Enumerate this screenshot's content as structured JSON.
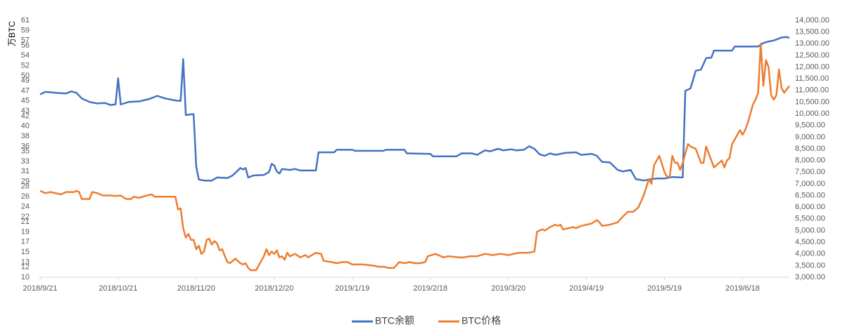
{
  "chart_data": {
    "type": "line",
    "y_label": "万BTC",
    "xlim": [
      "2018/9/21",
      "2019/7/6"
    ],
    "xticks": [
      "2018/9/21",
      "2018/10/21",
      "2018/11/20",
      "2018/12/20",
      "2019/1/19",
      "2019/2/18",
      "2019/3/20",
      "2019/4/19",
      "2019/5/19",
      "2019/6/18"
    ],
    "ylim": [
      10,
      61
    ],
    "yticks": [
      10,
      12,
      13,
      15,
      17,
      19,
      21,
      22,
      24,
      26,
      28,
      29,
      31,
      33,
      35,
      36,
      38,
      40,
      42,
      43,
      45,
      47,
      49,
      50,
      52,
      54,
      56,
      57,
      59,
      61
    ],
    "y2lim": [
      3000,
      14000
    ],
    "y2ticks": [
      {
        "value": 3000,
        "label": "3,000.00"
      },
      {
        "value": 3500,
        "label": "3,500.00"
      },
      {
        "value": 4000,
        "label": "4,000.00"
      },
      {
        "value": 4500,
        "label": "4,500.00"
      },
      {
        "value": 5000,
        "label": "5,000.00"
      },
      {
        "value": 5500,
        "label": "5,500.00"
      },
      {
        "value": 6000,
        "label": "6,000.00"
      },
      {
        "value": 6500,
        "label": "6,500.00"
      },
      {
        "value": 7000,
        "label": "7,000.00"
      },
      {
        "value": 7500,
        "label": "7,500.00"
      },
      {
        "value": 8000,
        "label": "8,000.00"
      },
      {
        "value": 8500,
        "label": "8,500.00"
      },
      {
        "value": 9000,
        "label": "9,000.00"
      },
      {
        "value": 9500,
        "label": "9,500.00"
      },
      {
        "value": 10000,
        "label": "10,000.00"
      },
      {
        "value": 10500,
        "label": "10,500.00"
      },
      {
        "value": 11000,
        "label": "11,000.00"
      },
      {
        "value": 11500,
        "label": "11,500.00"
      },
      {
        "value": 12000,
        "label": "12,000.00"
      },
      {
        "value": 12500,
        "label": "12,500.00"
      },
      {
        "value": 13000,
        "label": "13,000.00"
      },
      {
        "value": 13500,
        "label": "13,500.00"
      },
      {
        "value": 14000,
        "label": "14,000.00"
      }
    ],
    "grid": false,
    "legend": "bottom",
    "series": [
      {
        "name": "BTC余额",
        "color": "#4472c4",
        "axis": "y",
        "x": [
          "2018/9/21",
          "2018/9/23",
          "2018/9/27",
          "2018/10/1",
          "2018/10/3",
          "2018/10/5",
          "2018/10/7",
          "2018/10/10",
          "2018/10/13",
          "2018/10/16",
          "2018/10/18",
          "2018/10/20",
          "2018/10/21",
          "2018/10/22",
          "2018/10/25",
          "2018/10/29",
          "2018/11/2",
          "2018/11/5",
          "2018/11/8",
          "2018/11/12",
          "2018/11/14",
          "2018/11/15",
          "2018/11/16",
          "2018/11/19",
          "2018/11/20",
          "2018/11/21",
          "2018/11/23",
          "2018/11/26",
          "2018/11/28",
          "2018/12/2",
          "2018/12/4",
          "2018/12/7",
          "2018/12/8",
          "2018/12/9",
          "2018/12/10",
          "2018/12/12",
          "2018/12/16",
          "2018/12/18",
          "2018/12/19",
          "2018/12/20",
          "2018/12/21",
          "2018/12/22",
          "2018/12/23",
          "2018/12/26",
          "2018/12/28",
          "2018/12/30",
          "2019/1/5",
          "2019/1/6",
          "2019/1/12",
          "2019/1/13",
          "2019/1/19",
          "2019/1/20",
          "2019/1/31",
          "2019/2/1",
          "2019/2/8",
          "2019/2/9",
          "2019/2/18",
          "2019/2/19",
          "2019/2/28",
          "2019/3/2",
          "2019/3/6",
          "2019/3/8",
          "2019/3/11",
          "2019/3/13",
          "2019/3/16",
          "2019/3/18",
          "2019/3/21",
          "2019/3/23",
          "2019/3/26",
          "2019/3/28",
          "2019/3/30",
          "2019/4/1",
          "2019/4/3",
          "2019/4/5",
          "2019/4/7",
          "2019/4/11",
          "2019/4/15",
          "2019/4/17",
          "2019/4/21",
          "2019/4/23",
          "2019/4/25",
          "2019/4/28",
          "2019/5/1",
          "2019/5/3",
          "2019/5/6",
          "2019/5/8",
          "2019/5/11",
          "2019/5/14",
          "2019/5/16",
          "2019/5/19",
          "2019/5/22",
          "2019/5/26",
          "2019/5/27",
          "2019/5/29",
          "2019/5/31",
          "2019/6/2",
          "2019/6/4",
          "2019/6/6",
          "2019/6/7",
          "2019/6/14",
          "2019/6/15",
          "2019/6/24",
          "2019/6/26",
          "2019/6/28",
          "2019/6/30",
          "2019/7/3",
          "2019/7/5",
          "2019/7/6"
        ],
        "values": [
          46.3,
          46.8,
          46.6,
          46.5,
          46.9,
          46.6,
          45.5,
          44.8,
          44.5,
          44.6,
          44.2,
          44.3,
          49.5,
          44.3,
          44.8,
          44.9,
          45.4,
          46,
          45.5,
          45.1,
          45,
          53.3,
          42.2,
          42.4,
          32,
          29.4,
          29.2,
          29.2,
          29.8,
          29.7,
          30.2,
          31.7,
          31.4,
          31.7,
          29.8,
          30.2,
          30.3,
          30.9,
          32.5,
          32.2,
          31,
          30.6,
          31.5,
          31.3,
          31.5,
          31.2,
          31.2,
          34.8,
          34.8,
          35.3,
          35.3,
          35.1,
          35.1,
          35.3,
          35.3,
          34.6,
          34.5,
          34,
          34,
          34.6,
          34.6,
          34.3,
          35.2,
          35,
          35.5,
          35.2,
          35.4,
          35.2,
          35.3,
          36,
          35.5,
          34.4,
          34.1,
          34.6,
          34.3,
          34.7,
          34.8,
          34.3,
          34.5,
          34.1,
          32.9,
          32.8,
          31.3,
          31,
          31.3,
          29.5,
          29.2,
          29.5,
          29.6,
          29.6,
          29.9,
          29.8,
          47,
          47.5,
          51,
          51.2,
          53.5,
          53.6,
          55,
          55,
          55.8,
          55.8,
          56.5,
          56.8,
          57,
          57.6,
          57.7,
          57.5
        ]
      },
      {
        "name": "BTC价格",
        "color": "#ed7d31",
        "axis": "y2",
        "x": [
          "2018/9/21",
          "2018/9/23",
          "2018/9/25",
          "2018/9/29",
          "2018/10/1",
          "2018/10/4",
          "2018/10/5",
          "2018/10/6",
          "2018/10/7",
          "2018/10/10",
          "2018/10/11",
          "2018/10/13",
          "2018/10/15",
          "2018/10/18",
          "2018/10/20",
          "2018/10/22",
          "2018/10/24",
          "2018/10/26",
          "2018/10/27",
          "2018/10/29",
          "2018/11/1",
          "2018/11/3",
          "2018/11/4",
          "2018/11/12",
          "2018/11/13",
          "2018/11/14",
          "2018/11/15",
          "2018/11/16",
          "2018/11/17",
          "2018/11/18",
          "2018/11/19",
          "2018/11/20",
          "2018/11/21",
          "2018/11/22",
          "2018/11/23",
          "2018/11/24",
          "2018/11/25",
          "2018/11/26",
          "2018/11/27",
          "2018/11/28",
          "2018/11/29",
          "2018/11/30",
          "2018/12/1",
          "2018/12/2",
          "2018/12/3",
          "2018/12/5",
          "2018/12/7",
          "2018/12/8",
          "2018/12/9",
          "2018/12/10",
          "2018/12/11",
          "2018/12/13",
          "2018/12/15",
          "2018/12/16",
          "2018/12/17",
          "2018/12/18",
          "2018/12/19",
          "2018/12/20",
          "2018/12/21",
          "2018/12/22",
          "2018/12/23",
          "2018/12/24",
          "2018/12/25",
          "2018/12/26",
          "2018/12/28",
          "2018/12/30",
          "2019/1/1",
          "2019/1/2",
          "2019/1/5",
          "2019/1/7",
          "2019/1/8",
          "2019/1/11",
          "2019/1/13",
          "2019/1/15",
          "2019/1/17",
          "2019/1/19",
          "2019/1/23",
          "2019/1/27",
          "2019/1/29",
          "2019/1/31",
          "2019/2/2",
          "2019/2/4",
          "2019/2/6",
          "2019/2/8",
          "2019/2/10",
          "2019/2/12",
          "2019/2/14",
          "2019/2/16",
          "2019/2/17",
          "2019/2/20",
          "2019/2/21",
          "2019/2/23",
          "2019/2/25",
          "2019/3/1",
          "2019/3/3",
          "2019/3/5",
          "2019/3/8",
          "2019/3/11",
          "2019/3/14",
          "2019/3/17",
          "2019/3/20",
          "2019/3/24",
          "2019/3/28",
          "2019/3/30",
          "2019/3/31",
          "2019/4/2",
          "2019/4/3",
          "2019/4/5",
          "2019/4/7",
          "2019/4/8",
          "2019/4/9",
          "2019/4/10",
          "2019/4/12",
          "2019/4/14",
          "2019/4/15",
          "2019/4/17",
          "2019/4/21",
          "2019/4/23",
          "2019/4/24",
          "2019/4/25",
          "2019/4/28",
          "2019/5/1",
          "2019/5/3",
          "2019/5/5",
          "2019/5/7",
          "2019/5/9",
          "2019/5/11",
          "2019/5/13",
          "2019/5/14",
          "2019/5/15",
          "2019/5/17",
          "2019/5/19",
          "2019/5/20",
          "2019/5/21",
          "2019/5/22",
          "2019/5/23",
          "2019/5/24",
          "2019/5/25",
          "2019/5/26",
          "2019/5/28",
          "2019/5/29",
          "2019/5/31",
          "2019/6/1",
          "2019/6/2",
          "2019/6/3",
          "2019/6/4",
          "2019/6/6",
          "2019/6/7",
          "2019/6/8",
          "2019/6/9",
          "2019/6/10",
          "2019/6/11",
          "2019/6/12",
          "2019/6/13",
          "2019/6/14",
          "2019/6/15",
          "2019/6/16",
          "2019/6/17",
          "2019/6/18",
          "2019/6/19",
          "2019/6/20",
          "2019/6/22",
          "2019/6/23",
          "2019/6/24",
          "2019/6/25",
          "2019/6/26",
          "2019/6/27",
          "2019/6/28",
          "2019/6/29",
          "2019/6/30",
          "2019/7/1",
          "2019/7/2",
          "2019/7/3",
          "2019/7/4",
          "2019/7/6"
        ],
        "values": [
          6700,
          6600,
          6650,
          6550,
          6650,
          6650,
          6700,
          6650,
          6350,
          6350,
          6650,
          6600,
          6500,
          6500,
          6480,
          6500,
          6350,
          6350,
          6450,
          6400,
          6500,
          6550,
          6450,
          6450,
          5900,
          5950,
          5100,
          4700,
          4850,
          4600,
          4600,
          4200,
          4350,
          4000,
          4100,
          4600,
          4650,
          4400,
          4550,
          4450,
          4150,
          4200,
          3900,
          3650,
          3600,
          3800,
          3600,
          3550,
          3600,
          3400,
          3300,
          3300,
          3700,
          3900,
          4200,
          3950,
          4100,
          4000,
          4150,
          3850,
          3900,
          3750,
          4050,
          3900,
          4000,
          3850,
          3950,
          3850,
          4050,
          4000,
          3700,
          3650,
          3600,
          3650,
          3650,
          3550,
          3550,
          3500,
          3450,
          3450,
          3400,
          3400,
          3650,
          3600,
          3650,
          3600,
          3600,
          3650,
          3900,
          4000,
          3950,
          3850,
          3900,
          3850,
          3850,
          3900,
          3900,
          4000,
          3950,
          4000,
          3950,
          4050,
          4050,
          4100,
          4950,
          5050,
          5000,
          5150,
          5250,
          5200,
          5250,
          5050,
          5100,
          5150,
          5100,
          5200,
          5300,
          5450,
          5350,
          5200,
          5250,
          5350,
          5600,
          5800,
          5800,
          6000,
          6500,
          7200,
          7000,
          7800,
          8200,
          7500,
          7300,
          7300,
          8200,
          7900,
          7900,
          7600,
          7900,
          8700,
          8600,
          8500,
          8200,
          7900,
          7900,
          8600,
          8000,
          7700,
          7800,
          7900,
          8000,
          7700,
          8000,
          8100,
          8700,
          8900,
          9100,
          9300,
          9100,
          9300,
          9600,
          10400,
          10600,
          10900,
          13000,
          11200,
          12300,
          12000,
          10800,
          10600,
          10800,
          11900,
          11100,
          10900,
          11200
        ]
      }
    ]
  }
}
